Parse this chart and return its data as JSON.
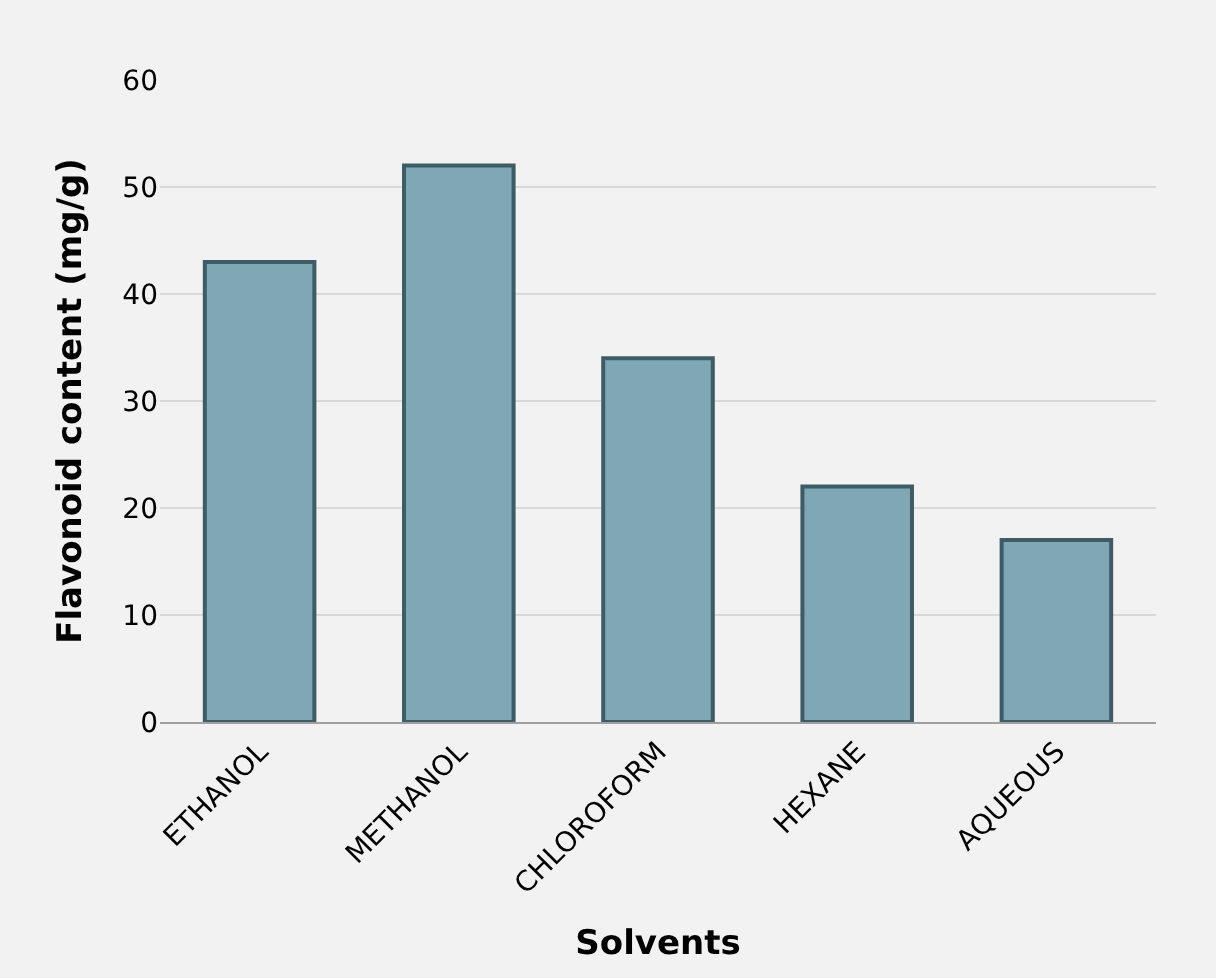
{
  "chart_data": {
    "type": "bar",
    "xlabel": "Solvents",
    "ylabel": "Flavonoid content (mg/g)",
    "categories": [
      "ETHANOL",
      "METHANOL",
      "CHLOROFORM",
      "HEXANE",
      "AQUEOUS"
    ],
    "values": [
      43,
      52,
      34,
      22,
      17
    ],
    "color": "#7fa8b4",
    "ylim": [
      0,
      60
    ],
    "yticks": [
      0,
      10,
      20,
      30,
      40,
      50,
      60
    ],
    "grid": "y"
  }
}
